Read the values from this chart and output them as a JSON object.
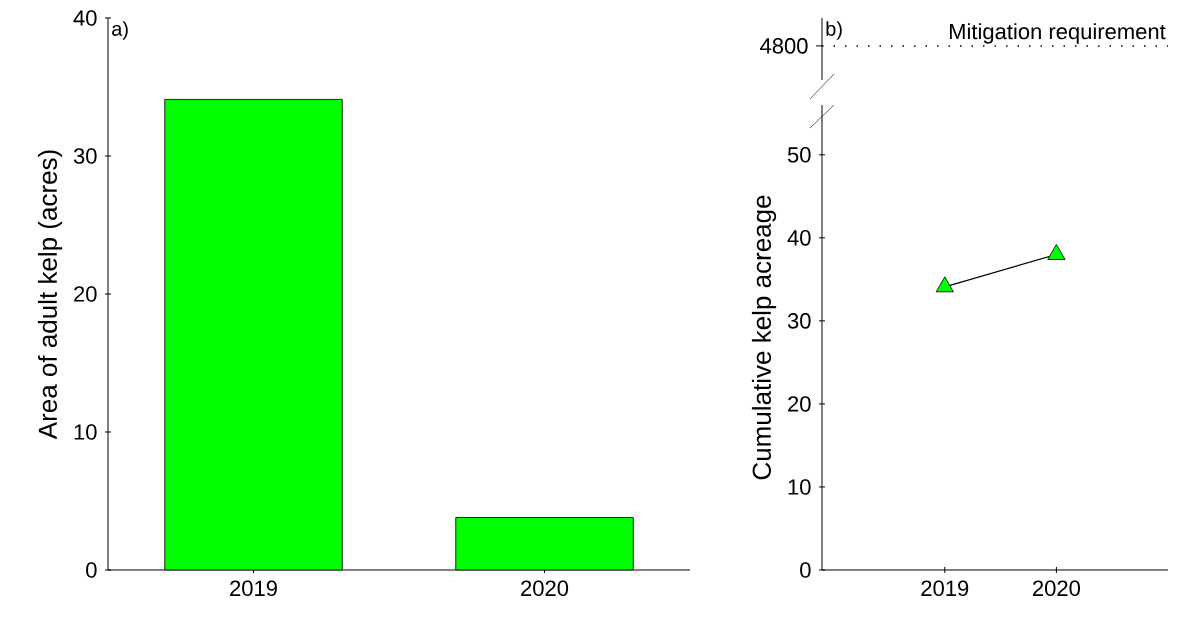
{
  "chart_data": [
    {
      "type": "bar",
      "categories": [
        "2019",
        "2020"
      ],
      "values": [
        34.1,
        3.8
      ],
      "color": "#00ff00",
      "ylim": [
        0,
        40
      ],
      "yticks": [
        0,
        10,
        20,
        30,
        40
      ],
      "ylabel": "Area of adult kelp (acres)",
      "annotations": [
        "a)"
      ]
    },
    {
      "type": "line",
      "categories": [
        "2019",
        "2020"
      ],
      "series": [
        {
          "color": "#00ff00",
          "values": [
            34.1,
            38
          ]
        }
      ],
      "marker": "triangle",
      "ylim": [
        0,
        56
      ],
      "yticks": [
        0,
        10,
        20,
        30,
        40,
        50
      ],
      "ylabel": "Cumulative kelp acreage"
    },
    {
      "type": "other",
      "annotations": [
        "b)",
        "4800",
        "Mitigation requirement"
      ]
    }
  ]
}
